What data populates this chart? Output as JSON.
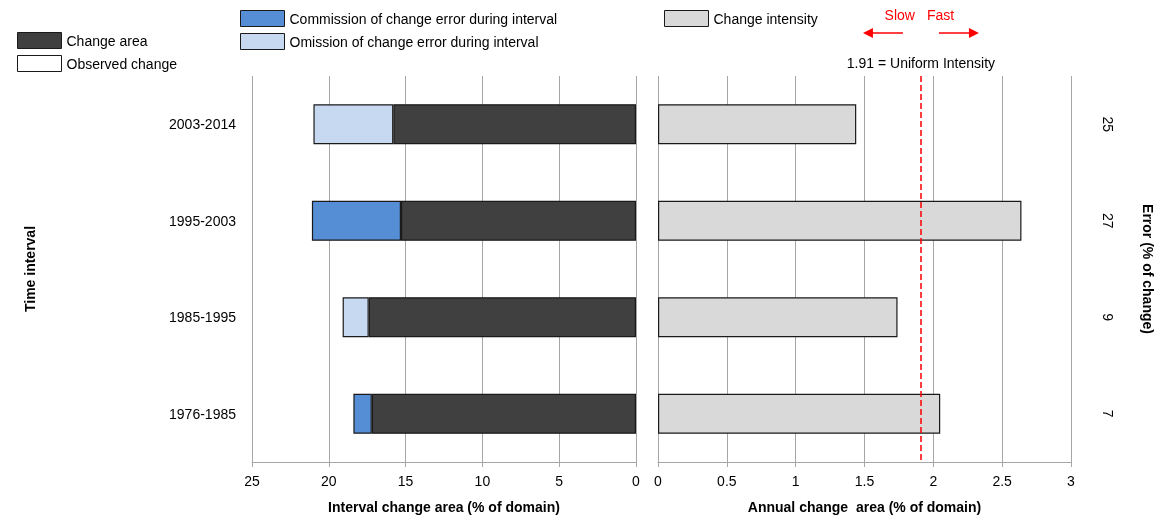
{
  "chart_data": [
    {
      "type": "bar",
      "orientation": "horizontal",
      "stacked": true,
      "xlabel": "Interval change area (% of domain)",
      "ylabel": "Time interval",
      "categories": [
        "2003-2014",
        "1995-2003",
        "1985-1995",
        "1976-1985"
      ],
      "series": [
        {
          "name": "Change area",
          "color": "#404040",
          "values": [
            15.8,
            15.3,
            17.4,
            17.2
          ]
        },
        {
          "name": "Commission of change error during interval",
          "color": "#558ed5",
          "values": [
            null,
            5.8,
            null,
            1.2
          ]
        },
        {
          "name": "Omission of change error during interval",
          "color": "#c6d9f1",
          "values": [
            5.2,
            null,
            1.7,
            null
          ]
        },
        {
          "name": "Observed change",
          "color": "#ffffff",
          "values": [
            null,
            null,
            null,
            null
          ]
        }
      ],
      "xlim": [
        25,
        0
      ],
      "xticks": [
        25,
        20,
        15,
        10,
        5,
        0
      ],
      "grid": "x",
      "legend": "top left"
    },
    {
      "type": "bar",
      "orientation": "horizontal",
      "xlabel": "Annual change  area (% of domain)",
      "y2label": "Error (% of change)",
      "categories": [
        "25",
        "27",
        "9",
        "7"
      ],
      "series": [
        {
          "name": "Change intensity",
          "color": "#d9d9d9",
          "values": [
            1.44,
            2.64,
            1.74,
            2.05
          ]
        }
      ],
      "xlim": [
        0,
        3
      ],
      "xticks": [
        0,
        0.5,
        1,
        1.5,
        2,
        2.5,
        3
      ],
      "grid": "x",
      "legend": "top left",
      "tick_labels": "x",
      "ref_lines": [
        {
          "axis": "x",
          "value": 1.91,
          "label": "1.91 = Uniform Intensity",
          "color": "#ff0000",
          "line_style": "dashed"
        }
      ],
      "annotations": [
        "Slow",
        "Fast"
      ]
    }
  ]
}
